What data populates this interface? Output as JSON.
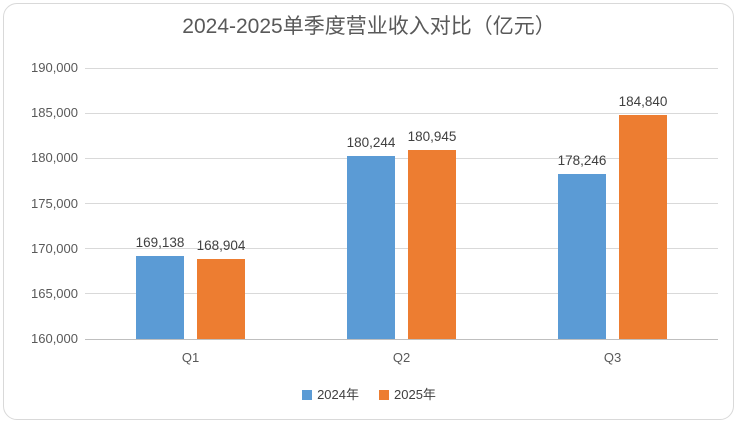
{
  "chart_data": {
    "type": "bar",
    "title": "2024-2025单季度营业收入对比（亿元）",
    "categories": [
      "Q1",
      "Q2",
      "Q3"
    ],
    "series": [
      {
        "name": "2024年",
        "color": "#5B9BD5",
        "values": [
          169138,
          180244,
          178246
        ]
      },
      {
        "name": "2025年",
        "color": "#ED7D31",
        "values": [
          168904,
          180945,
          184840
        ]
      }
    ],
    "ylim": [
      160000,
      190000
    ],
    "ytick_step": 5000,
    "ytick_labels": [
      "160,000",
      "165,000",
      "170,000",
      "175,000",
      "180,000",
      "185,000",
      "190,000"
    ],
    "data_labels_shown": true,
    "grid": true,
    "legend_position": "bottom",
    "colors": {
      "title_text": "#595959",
      "tick_text": "#595959",
      "data_label_text": "#404040",
      "gridline": "#D9D9D9",
      "axis_line": "#BFBFBF",
      "frame_border": "#D9D9D9",
      "background": "#FFFFFF"
    }
  }
}
